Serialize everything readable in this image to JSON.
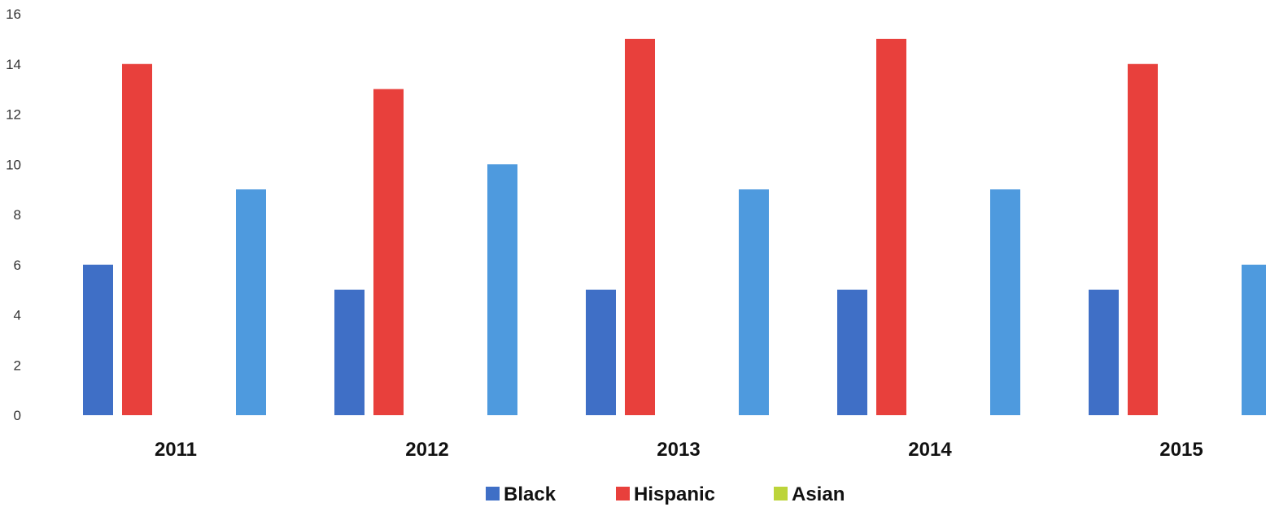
{
  "chart_data": {
    "type": "bar",
    "categories": [
      "2011",
      "2012",
      "2013",
      "2014",
      "2015"
    ],
    "series": [
      {
        "name": "Black",
        "color": "#3f6fc6",
        "values": [
          6,
          5,
          5,
          5,
          5
        ]
      },
      {
        "name": "Hispanic",
        "color": "#e8403c",
        "values": [
          14,
          13,
          15,
          15,
          14
        ]
      },
      {
        "name": "Asian",
        "color": "#bcd43a",
        "values": [
          0,
          0,
          0,
          0,
          1
        ]
      },
      {
        "name": "",
        "color": "#4e9ade",
        "values": [
          9,
          10,
          9,
          9,
          6
        ]
      }
    ],
    "yticks": [
      "0",
      "2",
      "4",
      "6",
      "8",
      "10",
      "12",
      "14",
      "16"
    ],
    "ylim": [
      0,
      16
    ],
    "grid": false,
    "legend_position": "bottom",
    "legend": [
      {
        "label": "Black",
        "color": "#3f6fc6"
      },
      {
        "label": "Hispanic",
        "color": "#e8403c"
      },
      {
        "label": "Asian",
        "color": "#bcd43a"
      }
    ]
  }
}
